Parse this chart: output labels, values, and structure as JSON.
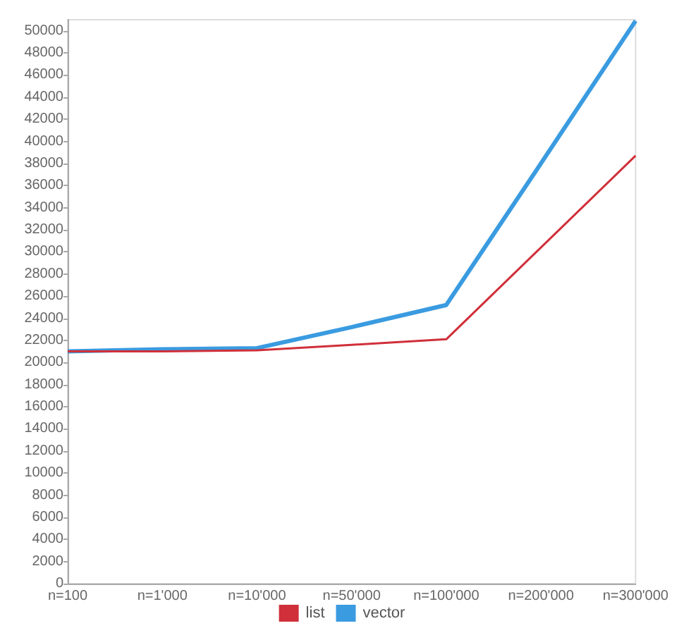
{
  "chart_data": {
    "type": "line",
    "categories": [
      "n=100",
      "n=1'000",
      "n=10'000",
      "n=50'000",
      "n=100'000",
      "n=200'000",
      "n=300'000"
    ],
    "series": [
      {
        "name": "list",
        "color": "#d0303a",
        "values": [
          21000,
          21000,
          21100,
          21600,
          22100,
          30400,
          38700
        ]
      },
      {
        "name": "vector",
        "color": "#3a9be0",
        "values": [
          21000,
          21200,
          21300,
          23200,
          25200,
          38000,
          50900
        ]
      }
    ],
    "ylim": [
      0,
      51000
    ],
    "yticks": [
      0,
      2000,
      4000,
      6000,
      8000,
      10000,
      12000,
      14000,
      16000,
      18000,
      20000,
      22000,
      24000,
      26000,
      28000,
      30000,
      32000,
      34000,
      36000,
      38000,
      40000,
      42000,
      44000,
      46000,
      48000,
      50000
    ],
    "grid": false,
    "legend": "bottom",
    "marker": "none",
    "line_style": "solid"
  }
}
